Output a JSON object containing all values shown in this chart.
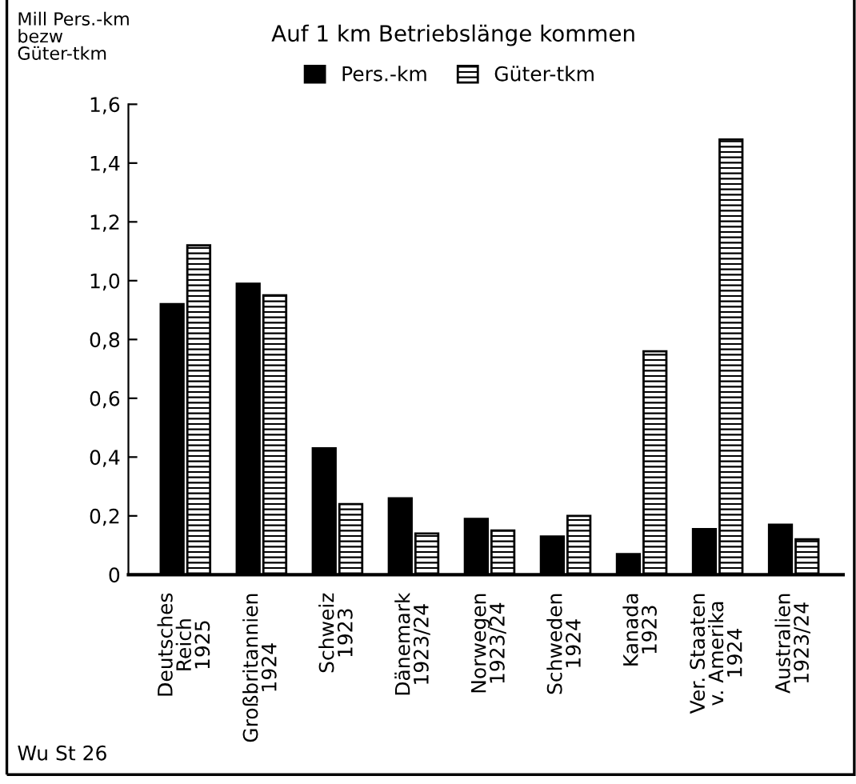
{
  "chart_data": {
    "type": "bar",
    "title": "Auf 1 km Betriebslänge kommen",
    "ylabel": "Mill Pers.-km\nbezw\nGüter-tkm",
    "categories": [
      "Deutsches\nReich\n1925",
      "Großbritannien\n1924",
      "Schweiz\n1923",
      "Dänemark\n1923/24",
      "Norwegen\n1923/24",
      "Schweden\n1924",
      "Kanada\n1923",
      "Ver. Staaten\nv. Amerika\n1924",
      "Australien\n1923/24"
    ],
    "series": [
      {
        "name": "Pers.-km",
        "color": "#000000",
        "values": [
          0.92,
          0.99,
          0.43,
          0.26,
          0.19,
          0.13,
          0.07,
          0.155,
          0.17
        ]
      },
      {
        "name": "Güter-tkm",
        "color": "#000000",
        "values": [
          1.12,
          0.95,
          0.24,
          0.14,
          0.15,
          0.2,
          0.76,
          1.48,
          0.12
        ]
      }
    ],
    "ylim": [
      0,
      1.6
    ],
    "yticks": [
      0,
      {
        "value": 0.2,
        "label": "0,2"
      },
      {
        "value": 0.4,
        "label": "0,4"
      },
      {
        "value": 0.6,
        "label": "0,6"
      },
      {
        "value": 0.8,
        "label": "0,8"
      },
      {
        "value": 1.0,
        "label": "1,0"
      },
      {
        "value": 1.2,
        "label": "1,2"
      },
      {
        "value": 1.4,
        "label": "1,4"
      },
      {
        "value": 1.6,
        "label": "1,6"
      }
    ],
    "legend": "top",
    "grid": false,
    "annotations": [
      "Wu St 26"
    ]
  }
}
